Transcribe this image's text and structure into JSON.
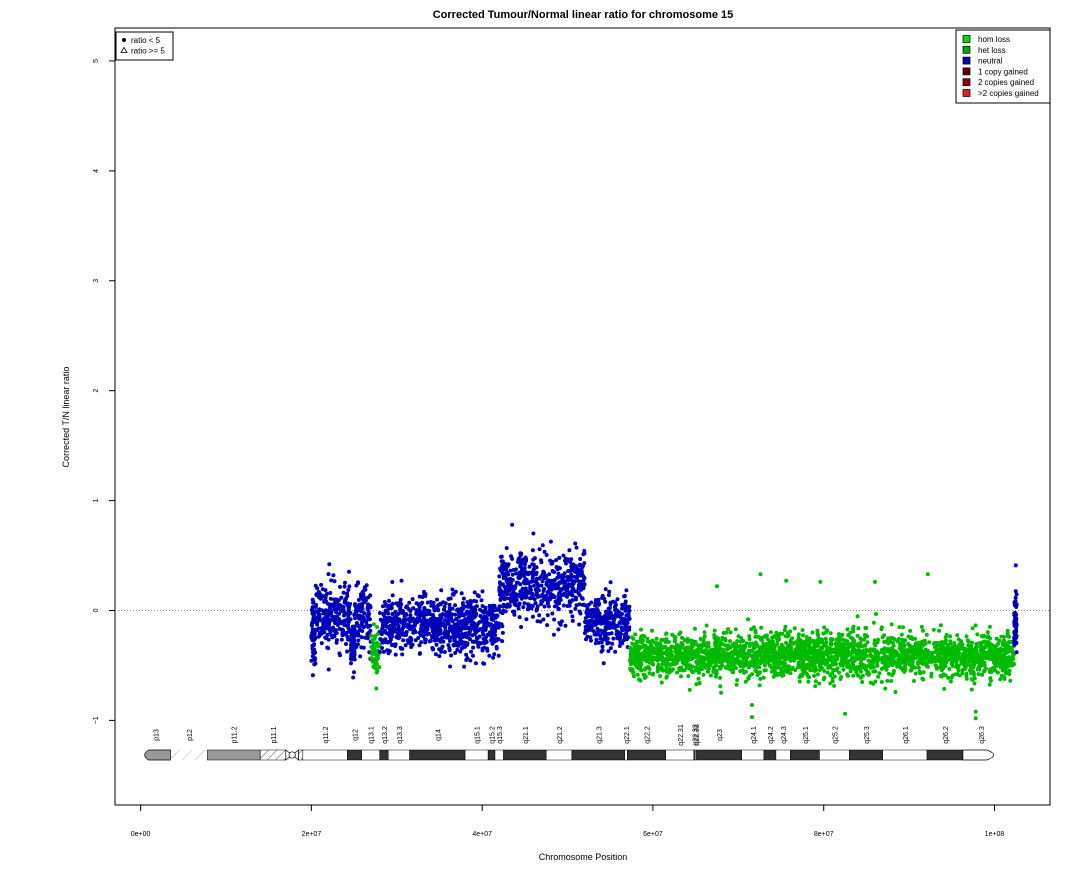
{
  "chart_data": {
    "type": "scatter",
    "title": "Corrected Tumour/Normal linear ratio for chromosome  15",
    "xlabel": "Chromosome Position",
    "ylabel": "Corrected T/N linear ratio",
    "xlim": [
      -3000000,
      106500000
    ],
    "ylim": [
      -1.77,
      5.3
    ],
    "x_ticks": [
      {
        "value": 0,
        "label": "0e+00"
      },
      {
        "value": 20000000,
        "label": "2e+07"
      },
      {
        "value": 40000000,
        "label": "4e+07"
      },
      {
        "value": 60000000,
        "label": "6e+07"
      },
      {
        "value": 80000000,
        "label": "8e+07"
      },
      {
        "value": 100000000,
        "label": "1e+08"
      }
    ],
    "y_ticks": [
      {
        "value": -1,
        "label": "−1"
      },
      {
        "value": 0,
        "label": "0"
      },
      {
        "value": 1,
        "label": "1"
      },
      {
        "value": 2,
        "label": "2"
      },
      {
        "value": 3,
        "label": "3"
      },
      {
        "value": 4,
        "label": "4"
      },
      {
        "value": 5,
        "label": "5"
      }
    ],
    "reference_line": 0,
    "colors": {
      "hom_loss": "#00ff00",
      "het_loss": "#00bb00",
      "neutral": "#0000bb",
      "gain1": "#770000",
      "gain2": "#aa0000",
      "gain3": "#dd0000",
      "reference": "#888888"
    },
    "legend_shape": [
      {
        "symbol": "dot",
        "label": "ratio < 5"
      },
      {
        "symbol": "triangle",
        "label": "ratio >= 5"
      }
    ],
    "legend_shape_placement": "top-left",
    "legend_class": [
      {
        "label": "hom loss",
        "color": "#00dd00"
      },
      {
        "label": "het loss",
        "color": "#00aa00"
      },
      {
        "label": "neutral",
        "color": "#0000aa"
      },
      {
        "label": "1 copy gained",
        "color": "#660000"
      },
      {
        "label": "2 copies gained",
        "color": "#990000"
      },
      {
        "label": ">2 copies gained",
        "color": "#dd2222"
      }
    ],
    "legend_class_placement": "top-right",
    "segments": [
      {
        "start": 20000000,
        "end": 20500000,
        "mean": -0.18,
        "sd": 0.17,
        "state": "neutral"
      },
      {
        "start": 20500000,
        "end": 22000000,
        "mean": -0.05,
        "sd": 0.13,
        "state": "neutral"
      },
      {
        "start": 22000000,
        "end": 24600000,
        "mean": -0.05,
        "sd": 0.14,
        "state": "neutral"
      },
      {
        "start": 24600000,
        "end": 25100000,
        "mean": -0.32,
        "sd": 0.1,
        "state": "neutral"
      },
      {
        "start": 25100000,
        "end": 27000000,
        "mean": -0.08,
        "sd": 0.14,
        "state": "neutral"
      },
      {
        "start": 27000000,
        "end": 28000000,
        "mean": -0.38,
        "sd": 0.12,
        "state": "het_loss"
      },
      {
        "start": 28000000,
        "end": 42000000,
        "mean": -0.14,
        "sd": 0.13,
        "state": "neutral"
      },
      {
        "start": 42000000,
        "end": 52000000,
        "mean": 0.22,
        "sd": 0.15,
        "state": "neutral"
      },
      {
        "start": 52000000,
        "end": 57300000,
        "mean": -0.12,
        "sd": 0.12,
        "state": "neutral"
      },
      {
        "start": 57300000,
        "end": 102300000,
        "mean": -0.41,
        "sd": 0.1,
        "state": "het_loss"
      },
      {
        "start": 102300000,
        "end": 102600000,
        "mean": -0.12,
        "sd": 0.15,
        "state": "neutral"
      }
    ],
    "outliers": [
      {
        "x": 72600000,
        "y": 0.33,
        "state": "het_loss"
      },
      {
        "x": 92200000,
        "y": 0.33,
        "state": "het_loss"
      },
      {
        "x": 75600000,
        "y": 0.27,
        "state": "het_loss"
      },
      {
        "x": 79600000,
        "y": 0.26,
        "state": "het_loss"
      },
      {
        "x": 86000000,
        "y": 0.26,
        "state": "het_loss"
      },
      {
        "x": 67500000,
        "y": 0.22,
        "state": "het_loss"
      },
      {
        "x": 71600000,
        "y": -0.86,
        "state": "het_loss"
      },
      {
        "x": 71600000,
        "y": -0.97,
        "state": "het_loss"
      },
      {
        "x": 82500000,
        "y": -0.94,
        "state": "het_loss"
      },
      {
        "x": 97800000,
        "y": -0.92,
        "state": "het_loss"
      },
      {
        "x": 97800000,
        "y": -0.98,
        "state": "het_loss"
      },
      {
        "x": 102500000,
        "y": 0.41,
        "state": "neutral"
      },
      {
        "x": 43500000,
        "y": 0.78,
        "state": "neutral"
      },
      {
        "x": 46000000,
        "y": 0.7,
        "state": "neutral"
      },
      {
        "x": 22100000,
        "y": 0.42,
        "state": "neutral"
      },
      {
        "x": 27600000,
        "y": -0.71,
        "state": "het_loss"
      }
    ],
    "ideogram": {
      "bands": [
        {
          "name": "p13",
          "start": 0,
          "end": 3500000,
          "stain": "acen-arm"
        },
        {
          "name": "p12",
          "start": 3500000,
          "end": 7800000,
          "stain": "stalk"
        },
        {
          "name": "p11.2",
          "start": 7800000,
          "end": 14000000,
          "stain": "gvar"
        },
        {
          "name": "p11.1",
          "start": 14000000,
          "end": 17000000,
          "stain": "hatch"
        },
        {
          "name": "cen",
          "start": 17000000,
          "end": 18500000,
          "stain": "centromere"
        },
        {
          "name": "q11.1",
          "start": 18500000,
          "end": 19000000,
          "stain": "hatch"
        },
        {
          "name": "q11.2",
          "start": 19000000,
          "end": 24200000,
          "stain": "gneg"
        },
        {
          "name": "q12",
          "start": 24200000,
          "end": 25900000,
          "stain": "gpos"
        },
        {
          "name": "q13.1",
          "start": 25900000,
          "end": 28000000,
          "stain": "gneg"
        },
        {
          "name": "q13.2",
          "start": 28000000,
          "end": 29000000,
          "stain": "gpos"
        },
        {
          "name": "q13.3",
          "start": 29000000,
          "end": 31500000,
          "stain": "gneg"
        },
        {
          "name": "q14",
          "start": 31500000,
          "end": 38000000,
          "stain": "gpos"
        },
        {
          "name": "q15.1",
          "start": 38000000,
          "end": 40700000,
          "stain": "gneg"
        },
        {
          "name": "q15.2",
          "start": 40700000,
          "end": 41500000,
          "stain": "gpos"
        },
        {
          "name": "q15.3",
          "start": 41500000,
          "end": 42500000,
          "stain": "gneg"
        },
        {
          "name": "q21.1",
          "start": 42500000,
          "end": 47500000,
          "stain": "gpos"
        },
        {
          "name": "q21.2",
          "start": 47500000,
          "end": 50500000,
          "stain": "gneg"
        },
        {
          "name": "q21.3",
          "start": 50500000,
          "end": 56700000,
          "stain": "gpos"
        },
        {
          "name": "q22.1",
          "start": 56700000,
          "end": 57000000,
          "stain": "gneg"
        },
        {
          "name": "q22.2",
          "start": 57000000,
          "end": 61500000,
          "stain": "gpos"
        },
        {
          "name": "q22.31",
          "start": 61500000,
          "end": 64800000,
          "stain": "gneg"
        },
        {
          "name": "q22.32",
          "start": 64800000,
          "end": 64950000,
          "stain": "gpos"
        },
        {
          "name": "q22.33",
          "start": 64950000,
          "end": 65100000,
          "stain": "gneg"
        },
        {
          "name": "q23",
          "start": 65100000,
          "end": 70400000,
          "stain": "gpos"
        },
        {
          "name": "q24.1",
          "start": 70400000,
          "end": 73000000,
          "stain": "gneg"
        },
        {
          "name": "q24.2",
          "start": 73000000,
          "end": 74400000,
          "stain": "gpos"
        },
        {
          "name": "q24.3",
          "start": 74400000,
          "end": 76100000,
          "stain": "gneg"
        },
        {
          "name": "q25.1",
          "start": 76100000,
          "end": 79500000,
          "stain": "gpos"
        },
        {
          "name": "q25.2",
          "start": 79500000,
          "end": 83000000,
          "stain": "gneg"
        },
        {
          "name": "q25.3",
          "start": 83000000,
          "end": 86900000,
          "stain": "gpos"
        },
        {
          "name": "q26.1",
          "start": 86900000,
          "end": 92100000,
          "stain": "gneg"
        },
        {
          "name": "q26.2",
          "start": 92100000,
          "end": 96300000,
          "stain": "gpos"
        },
        {
          "name": "q26.3",
          "start": 96300000,
          "end": 100500000,
          "stain": "tel"
        }
      ],
      "label_bands": [
        "p13",
        "p12",
        "p11.2",
        "p11.1",
        "q11.2",
        "q12",
        "q13.1",
        "q13.2",
        "q13.3",
        "q14",
        "q15.1",
        "q15.2",
        "q15.3",
        "q21.1",
        "q21.2",
        "q21.3",
        "q22.1",
        "q22.2",
        "q22.31",
        "q22.32",
        "q22.33",
        "q23",
        "q24.1",
        "q24.2",
        "q24.3",
        "q25.1",
        "q25.2",
        "q25.3",
        "q26.1",
        "q26.2",
        "q26.3"
      ]
    }
  }
}
